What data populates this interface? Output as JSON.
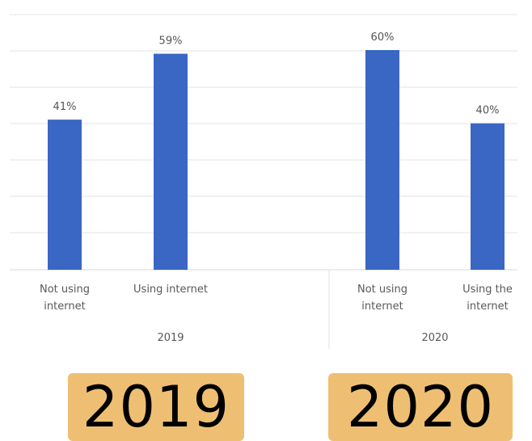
{
  "chart_data": {
    "type": "bar",
    "groups": [
      {
        "label": "2019",
        "categories": [
          "Not using internet",
          "Using internet"
        ],
        "category_lines": [
          [
            "Not using",
            "internet"
          ],
          [
            "Using internet"
          ]
        ],
        "values": [
          41,
          59
        ],
        "data_labels": [
          "41%",
          "59%"
        ]
      },
      {
        "label": "2020",
        "categories": [
          "Not using internet",
          "Using the internet"
        ],
        "category_lines": [
          [
            "Not using",
            "internet"
          ],
          [
            "Using the",
            "internet"
          ]
        ],
        "values": [
          60,
          40
        ],
        "data_labels": [
          "60%",
          "40%"
        ]
      }
    ],
    "ylim": [
      0,
      60
    ],
    "grid": true,
    "bar_color": "#3a67c4",
    "gridline_color": "#e3e3e3",
    "title": "",
    "xlabel": "",
    "ylabel": ""
  },
  "badges": {
    "year_2019": "2019",
    "year_2020": "2020",
    "color": "#eebf73"
  }
}
